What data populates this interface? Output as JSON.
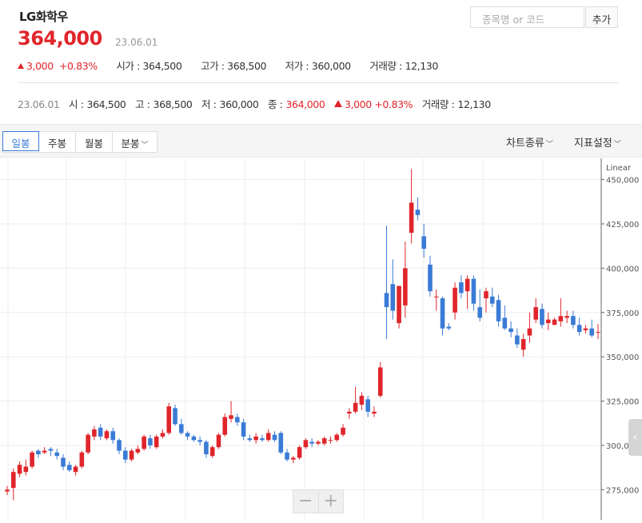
{
  "stock": {
    "name": "LG화학우",
    "price": "364,000",
    "date": "23.06.01",
    "change": "3,000",
    "change_pct": "+0.83%",
    "open_label": "시가 :",
    "open": "364,500",
    "high_label": "고가 :",
    "high": "368,500",
    "low_label": "저가 :",
    "low": "360,000",
    "volume_label": "거래량 :",
    "volume": "12,130"
  },
  "search": {
    "placeholder": "종목명 or 코드",
    "add_label": "추가"
  },
  "summary": {
    "date": "23.06.01",
    "open_label": "시 :",
    "open": "364,500",
    "high_label": "고 :",
    "high": "368,500",
    "low_label": "저 :",
    "low": "360,000",
    "close_label": "종 :",
    "close": "364,000",
    "change": "3,000",
    "change_pct": "+0.83%",
    "volume_label": "거래량 :",
    "volume": "12,130"
  },
  "toolbar": {
    "tabs": [
      "일봉",
      "주봉",
      "월봉",
      "분봉"
    ],
    "active_tab": 0,
    "chart_type_label": "차트종류",
    "indicator_label": "지표설정"
  },
  "colors": {
    "up": "#e0252b",
    "down": "#3a7bd5",
    "grid": "#eeeeee"
  },
  "chart_data": {
    "type": "candlestick",
    "scale_label": "Linear",
    "ylim": [
      258000,
      462000
    ],
    "ticks": [
      {
        "value": 450000,
        "label": "450,000"
      },
      {
        "value": 425000,
        "label": "425,000"
      },
      {
        "value": 400000,
        "label": "400,000"
      },
      {
        "value": 375000,
        "label": "375,000"
      },
      {
        "value": 350000,
        "label": "350,000"
      },
      {
        "value": 325000,
        "label": "325,000"
      },
      {
        "value": 300000,
        "label": "300,000"
      },
      {
        "value": 275000,
        "label": "275,000"
      }
    ],
    "candles": [
      [
        274000,
        277000,
        272000,
        275000
      ],
      [
        276000,
        287000,
        269000,
        285000
      ],
      [
        284000,
        291000,
        282000,
        289000
      ],
      [
        285000,
        292000,
        283000,
        288000
      ],
      [
        288000,
        297000,
        287000,
        296000
      ],
      [
        297000,
        298000,
        293000,
        295000
      ],
      [
        296000,
        299000,
        295000,
        297000
      ],
      [
        298000,
        299000,
        294000,
        297000
      ],
      [
        296000,
        298000,
        292000,
        294000
      ],
      [
        293000,
        295000,
        286000,
        288000
      ],
      [
        289000,
        291000,
        285000,
        286000
      ],
      [
        285000,
        289000,
        283000,
        288000
      ],
      [
        288000,
        297000,
        287000,
        296000
      ],
      [
        296000,
        307000,
        295000,
        306000
      ],
      [
        305000,
        311000,
        303000,
        309000
      ],
      [
        310000,
        312000,
        303000,
        305000
      ],
      [
        304000,
        309000,
        303000,
        308000
      ],
      [
        308000,
        310000,
        301000,
        303000
      ],
      [
        303000,
        304000,
        295000,
        297000
      ],
      [
        297000,
        299000,
        290000,
        292000
      ],
      [
        292000,
        298000,
        291000,
        297000
      ],
      [
        296000,
        300000,
        295000,
        298000
      ],
      [
        298000,
        306000,
        297000,
        305000
      ],
      [
        304000,
        306000,
        298000,
        300000
      ],
      [
        299000,
        306000,
        298000,
        305000
      ],
      [
        305000,
        309000,
        304000,
        307000
      ],
      [
        307000,
        324000,
        306000,
        322000
      ],
      [
        321000,
        323000,
        311000,
        312000
      ],
      [
        312000,
        315000,
        306000,
        307000
      ],
      [
        307000,
        308000,
        303000,
        305000
      ],
      [
        305000,
        306000,
        302000,
        303000
      ],
      [
        303000,
        305000,
        300000,
        302000
      ],
      [
        302000,
        303000,
        293000,
        295000
      ],
      [
        294000,
        300000,
        293000,
        299000
      ],
      [
        299000,
        307000,
        298000,
        306000
      ],
      [
        306000,
        318000,
        305000,
        316000
      ],
      [
        315000,
        325000,
        313000,
        317000
      ],
      [
        316000,
        318000,
        311000,
        313000
      ],
      [
        313000,
        315000,
        303000,
        305000
      ],
      [
        304000,
        306000,
        302000,
        303000
      ],
      [
        303000,
        307000,
        301000,
        305000
      ],
      [
        304000,
        306000,
        302000,
        303000
      ],
      [
        303000,
        309000,
        302000,
        307000
      ],
      [
        306000,
        308000,
        302000,
        303000
      ],
      [
        307000,
        308000,
        295000,
        296000
      ],
      [
        296000,
        298000,
        291000,
        292000
      ],
      [
        292000,
        294000,
        290000,
        293000
      ],
      [
        293000,
        300000,
        292000,
        299000
      ],
      [
        299000,
        304000,
        298000,
        303000
      ],
      [
        302000,
        304000,
        299000,
        301000
      ],
      [
        301000,
        303000,
        300000,
        302000
      ],
      [
        301000,
        305000,
        300000,
        304000
      ],
      [
        303000,
        305000,
        301000,
        303000
      ],
      [
        303000,
        307000,
        302000,
        306000
      ],
      [
        306000,
        312000,
        305000,
        310000
      ],
      [
        318000,
        321000,
        315000,
        319000
      ],
      [
        319000,
        333000,
        318000,
        324000
      ],
      [
        323000,
        330000,
        320000,
        328000
      ],
      [
        326000,
        328000,
        316000,
        319000
      ],
      [
        318000,
        322000,
        316000,
        319000
      ],
      [
        328000,
        347000,
        327000,
        344000
      ],
      [
        386000,
        424000,
        360000,
        378000
      ],
      [
        391000,
        405000,
        371000,
        376000
      ],
      [
        369000,
        389000,
        366000,
        390000
      ],
      [
        379000,
        415000,
        372000,
        400000
      ],
      [
        420000,
        456000,
        414000,
        437000
      ],
      [
        433000,
        440000,
        427000,
        430000
      ],
      [
        418000,
        425000,
        406000,
        411000
      ],
      [
        402000,
        407000,
        384000,
        387000
      ],
      [
        384000,
        388000,
        376000,
        384000
      ],
      [
        383000,
        384000,
        362000,
        366000
      ],
      [
        367000,
        369000,
        365000,
        366000
      ],
      [
        375000,
        392000,
        371000,
        389000
      ],
      [
        392000,
        396000,
        383000,
        386000
      ],
      [
        387000,
        396000,
        377000,
        394000
      ],
      [
        394000,
        396000,
        376000,
        380000
      ],
      [
        378000,
        388000,
        370000,
        372000
      ],
      [
        383000,
        389000,
        375000,
        387000
      ],
      [
        384000,
        389000,
        378000,
        380000
      ],
      [
        382000,
        385000,
        367000,
        370000
      ],
      [
        372000,
        379000,
        365000,
        366000
      ],
      [
        366000,
        370000,
        361000,
        364000
      ],
      [
        362000,
        366000,
        355000,
        357000
      ],
      [
        354000,
        363000,
        350000,
        360000
      ],
      [
        362000,
        375000,
        358000,
        366000
      ],
      [
        371000,
        383000,
        369000,
        378000
      ],
      [
        377000,
        380000,
        366000,
        368000
      ],
      [
        369000,
        375000,
        365000,
        371000
      ],
      [
        368000,
        372000,
        368000,
        371000
      ],
      [
        370000,
        383000,
        367000,
        373000
      ],
      [
        372000,
        376000,
        369000,
        373000
      ],
      [
        373000,
        376000,
        366000,
        368000
      ],
      [
        368000,
        372000,
        362000,
        364000
      ],
      [
        365000,
        368000,
        363000,
        366000
      ],
      [
        366000,
        371000,
        361000,
        362000
      ],
      [
        364000,
        368500,
        360000,
        364000
      ]
    ]
  },
  "zoom": {
    "minus": "−",
    "plus": "+"
  },
  "side_tab": "‹"
}
